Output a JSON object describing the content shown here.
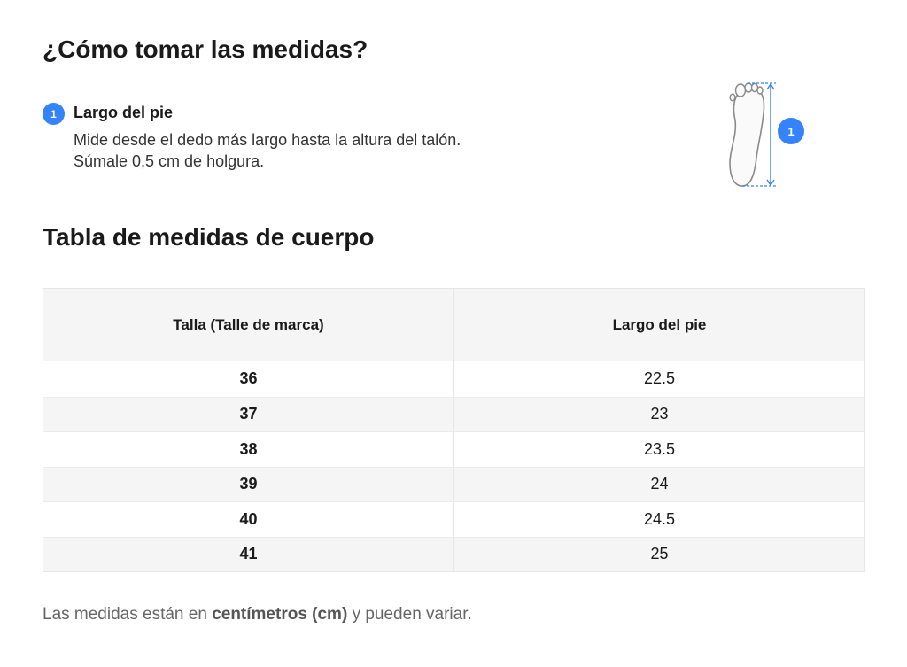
{
  "header": {
    "title": "¿Cómo tomar las medidas?"
  },
  "step": {
    "number": "1",
    "title": "Largo del pie",
    "description": "Mide desde el dedo más largo hasta la altura del talón. Súmale 0,5 cm de holgura."
  },
  "figure": {
    "badge": "1",
    "accent": "#3483fa"
  },
  "table_section": {
    "title": "Tabla de medidas de cuerpo"
  },
  "table": {
    "headers": [
      "Talla (Talle de marca)",
      "Largo del pie"
    ],
    "rows": [
      [
        "36",
        "22.5"
      ],
      [
        "37",
        "23"
      ],
      [
        "38",
        "23.5"
      ],
      [
        "39",
        "24"
      ],
      [
        "40",
        "24.5"
      ],
      [
        "41",
        "25"
      ]
    ]
  },
  "footnote": {
    "prefix": "Las medidas están en ",
    "unit": "centímetros (cm)",
    "suffix": " y pueden variar."
  }
}
